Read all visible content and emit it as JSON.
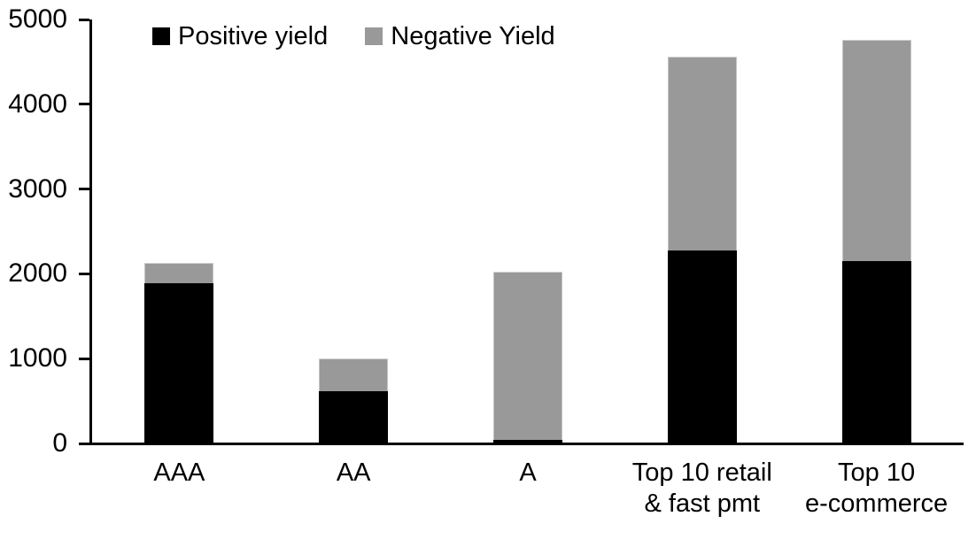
{
  "chart_data": {
    "type": "bar",
    "stacked": true,
    "title": "",
    "xlabel": "",
    "ylabel": "",
    "categories": [
      "AAA",
      "AA",
      "A",
      "Top 10 retail & fast pmt",
      "Top 10 e-commerce"
    ],
    "category_label_lines": [
      [
        "AAA"
      ],
      [
        "AA"
      ],
      [
        "A"
      ],
      [
        "Top 10 retail",
        "& fast pmt"
      ],
      [
        "Top 10",
        "e-commerce"
      ]
    ],
    "series": [
      {
        "name": "Positive yield",
        "color": "#000000",
        "values": [
          1890,
          620,
          45,
          2280,
          2150
        ]
      },
      {
        "name": "Negative Yield",
        "color": "#999999",
        "values": [
          235,
          385,
          1985,
          2280,
          2610
        ]
      }
    ],
    "ylim": [
      0,
      5000
    ],
    "yticks": [
      0,
      1000,
      2000,
      3000,
      4000,
      5000
    ],
    "legend_position": "top",
    "grid": false,
    "axis_color": "#000000",
    "background_color": "#ffffff"
  }
}
